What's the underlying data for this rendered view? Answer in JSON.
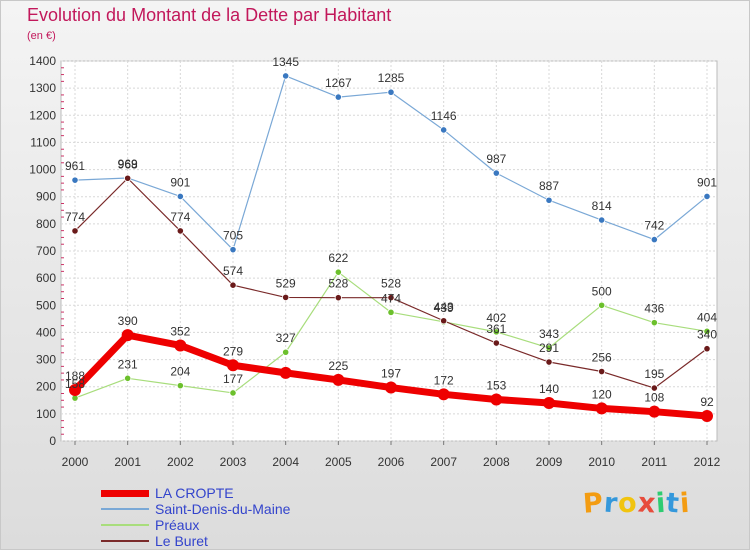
{
  "header": {
    "title": "Evolution du Montant de la Dette par Habitant",
    "subtitle": "(en €)"
  },
  "brand": {
    "letters": [
      "P",
      "r",
      "o",
      "x",
      "i",
      "t",
      "i"
    ],
    "colors": [
      "#f39c12",
      "#3498db",
      "#f1c40f",
      "#e74c3c",
      "#2ecc71",
      "#3498db",
      "#f39c12"
    ]
  },
  "chart_data": {
    "type": "line",
    "categories": [
      "2000",
      "2001",
      "2002",
      "2003",
      "2004",
      "2005",
      "2006",
      "2007",
      "2008",
      "2009",
      "2010",
      "2011",
      "2012"
    ],
    "ylim": [
      0,
      1400
    ],
    "yticks": [
      "0",
      "100",
      "200",
      "300",
      "400",
      "500",
      "600",
      "700",
      "800",
      "900",
      "1000",
      "1100",
      "1200",
      "1300",
      "1400"
    ],
    "grid": true,
    "legend_position": "bottom-left",
    "series": [
      {
        "name": "LA CROPTE",
        "color": "#ee0000",
        "width": 7,
        "marker": 6,
        "values": [
          188,
          390,
          352,
          279,
          251,
          225,
          197,
          172,
          153,
          140,
          120,
          108,
          92
        ],
        "labels": [
          "188",
          "390",
          "352",
          "279",
          "",
          "225",
          "197",
          "172",
          "153",
          "140",
          "120",
          "108",
          "92"
        ]
      },
      {
        "name": "Saint-Denis-du-Maine",
        "color": "#7aa8d6",
        "marker_color": "#3a78c0",
        "width": 1.2,
        "marker": 3.2,
        "values": [
          961,
          969,
          901,
          705,
          1345,
          1267,
          1285,
          1146,
          987,
          887,
          814,
          742,
          901
        ],
        "labels": [
          "961",
          "969",
          "901",
          "705",
          "1345",
          "1267",
          "1285",
          "1146",
          "987",
          "887",
          "814",
          "742",
          "901"
        ]
      },
      {
        "name": "Préaux",
        "color": "#a8dd7c",
        "marker_color": "#6cc02c",
        "width": 1.2,
        "marker": 3.2,
        "values": [
          158,
          231,
          204,
          177,
          327,
          622,
          474,
          439,
          402,
          343,
          500,
          436,
          404
        ],
        "labels": [
          "158",
          "231",
          "204",
          "177",
          "327",
          "622",
          "474",
          "439",
          "402",
          "343",
          "500",
          "436",
          "404"
        ]
      },
      {
        "name": "Le Buret",
        "color": "#7a2a2a",
        "marker_color": "#6a1a1a",
        "width": 1.2,
        "marker": 3.2,
        "values": [
          774,
          968,
          774,
          574,
          529,
          528,
          528,
          443,
          361,
          291,
          256,
          195,
          340
        ],
        "labels": [
          "774",
          "968",
          "774",
          "574",
          "529",
          "528",
          "528",
          "443",
          "361",
          "291",
          "256",
          "195",
          "340"
        ]
      }
    ]
  }
}
